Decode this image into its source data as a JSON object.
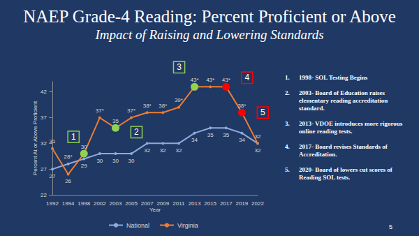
{
  "chart_data": {
    "type": "line",
    "title": "NAEP Grade-4 Reading: Percent Proficient or Above",
    "subtitle": "Impact of Raising and Lowering Standards",
    "x_label": "Year",
    "y_label": "Percent At or Above Proficient",
    "categories": [
      "1992",
      "1994",
      "1998",
      "2002",
      "2003",
      "2005",
      "2007",
      "2009",
      "2011",
      "2013",
      "2015",
      "2017",
      "2019",
      "2022"
    ],
    "series": [
      {
        "name": "National",
        "color": "#8faadc",
        "marker": "circle",
        "values": [
          27,
          28,
          29,
          30,
          30,
          30,
          32,
          32,
          32,
          34,
          35,
          35,
          34,
          32
        ],
        "value_labels": [
          "27",
          "28*",
          "29",
          "30",
          "30",
          "30",
          "32",
          "32",
          "32",
          "34",
          "35",
          "35",
          "34",
          "32"
        ]
      },
      {
        "name": "Virginia",
        "color": "#ed7d31",
        "marker": "circle",
        "values": [
          31,
          26,
          30,
          37,
          35,
          37,
          38,
          38,
          39,
          43,
          43,
          43,
          38,
          32
        ],
        "value_labels": [
          "31",
          "26",
          "30",
          "37*",
          "35",
          "37*",
          "38*",
          "38*",
          "39*",
          "43*",
          "43*",
          "43*",
          "38*",
          "32"
        ]
      }
    ],
    "ylim": [
      22,
      44
    ],
    "yticks": [
      22,
      27,
      32,
      37,
      42
    ],
    "grid": false,
    "legend": "bottom",
    "data_labels": true,
    "annotations": [
      {
        "label": "1",
        "x": "1998",
        "series": "Virginia",
        "color": "#92d050"
      },
      {
        "label": "2",
        "x": "2003",
        "series": "Virginia",
        "color": "#92d050"
      },
      {
        "label": "3",
        "x": "2013",
        "series": "Virginia",
        "color": "#92d050"
      },
      {
        "label": "4",
        "x": "2017",
        "series": "Virginia",
        "color": "#ff0000"
      },
      {
        "label": "5",
        "x": "2019",
        "series": "Virginia",
        "color": "#ff0000"
      }
    ],
    "notes": [
      {
        "number": "1.",
        "text": "1998- SOL Testing Begins"
      },
      {
        "number": "2.",
        "text": "2003- Board of Education raises elementary reading accreditation standard."
      },
      {
        "number": "3.",
        "text": "2013- VDOE introduces more rigorous online reading tests."
      },
      {
        "number": "4.",
        "text": "2017- Board revises Standards of Accreditation."
      },
      {
        "number": "5.",
        "text": "2020- Board of lowers cut scores of Reading SOL tests."
      }
    ],
    "page_number": "5"
  }
}
